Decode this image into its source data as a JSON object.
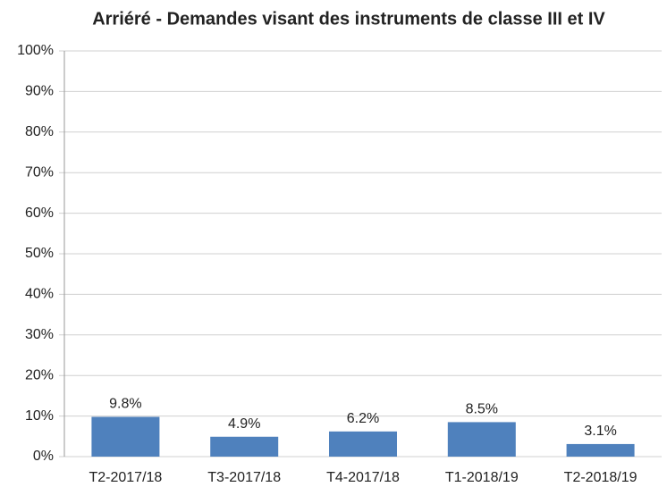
{
  "chart_data": {
    "type": "bar",
    "title": "Arriéré - Demandes visant des instruments de classe III et IV",
    "categories": [
      "T2-2017/18",
      "T3-2017/18",
      "T4-2017/18",
      "T1-2018/19",
      "T2-2018/19"
    ],
    "values": [
      9.8,
      4.9,
      6.2,
      8.5,
      3.1
    ],
    "value_labels": [
      "9.8%",
      "4.9%",
      "6.2%",
      "8.5%",
      "3.1%"
    ],
    "color": "#4f81bd",
    "ylim": [
      0,
      100
    ],
    "yticks": [
      {
        "value": 0,
        "label": "0%"
      },
      {
        "value": 10,
        "label": "10%"
      },
      {
        "value": 20,
        "label": "20%"
      },
      {
        "value": 30,
        "label": "30%"
      },
      {
        "value": 40,
        "label": "40%"
      },
      {
        "value": 50,
        "label": "50%"
      },
      {
        "value": 60,
        "label": "60%"
      },
      {
        "value": 70,
        "label": "70%"
      },
      {
        "value": 80,
        "label": "80%"
      },
      {
        "value": 90,
        "label": "90%"
      },
      {
        "value": 100,
        "label": "100%"
      }
    ],
    "grid": true
  }
}
